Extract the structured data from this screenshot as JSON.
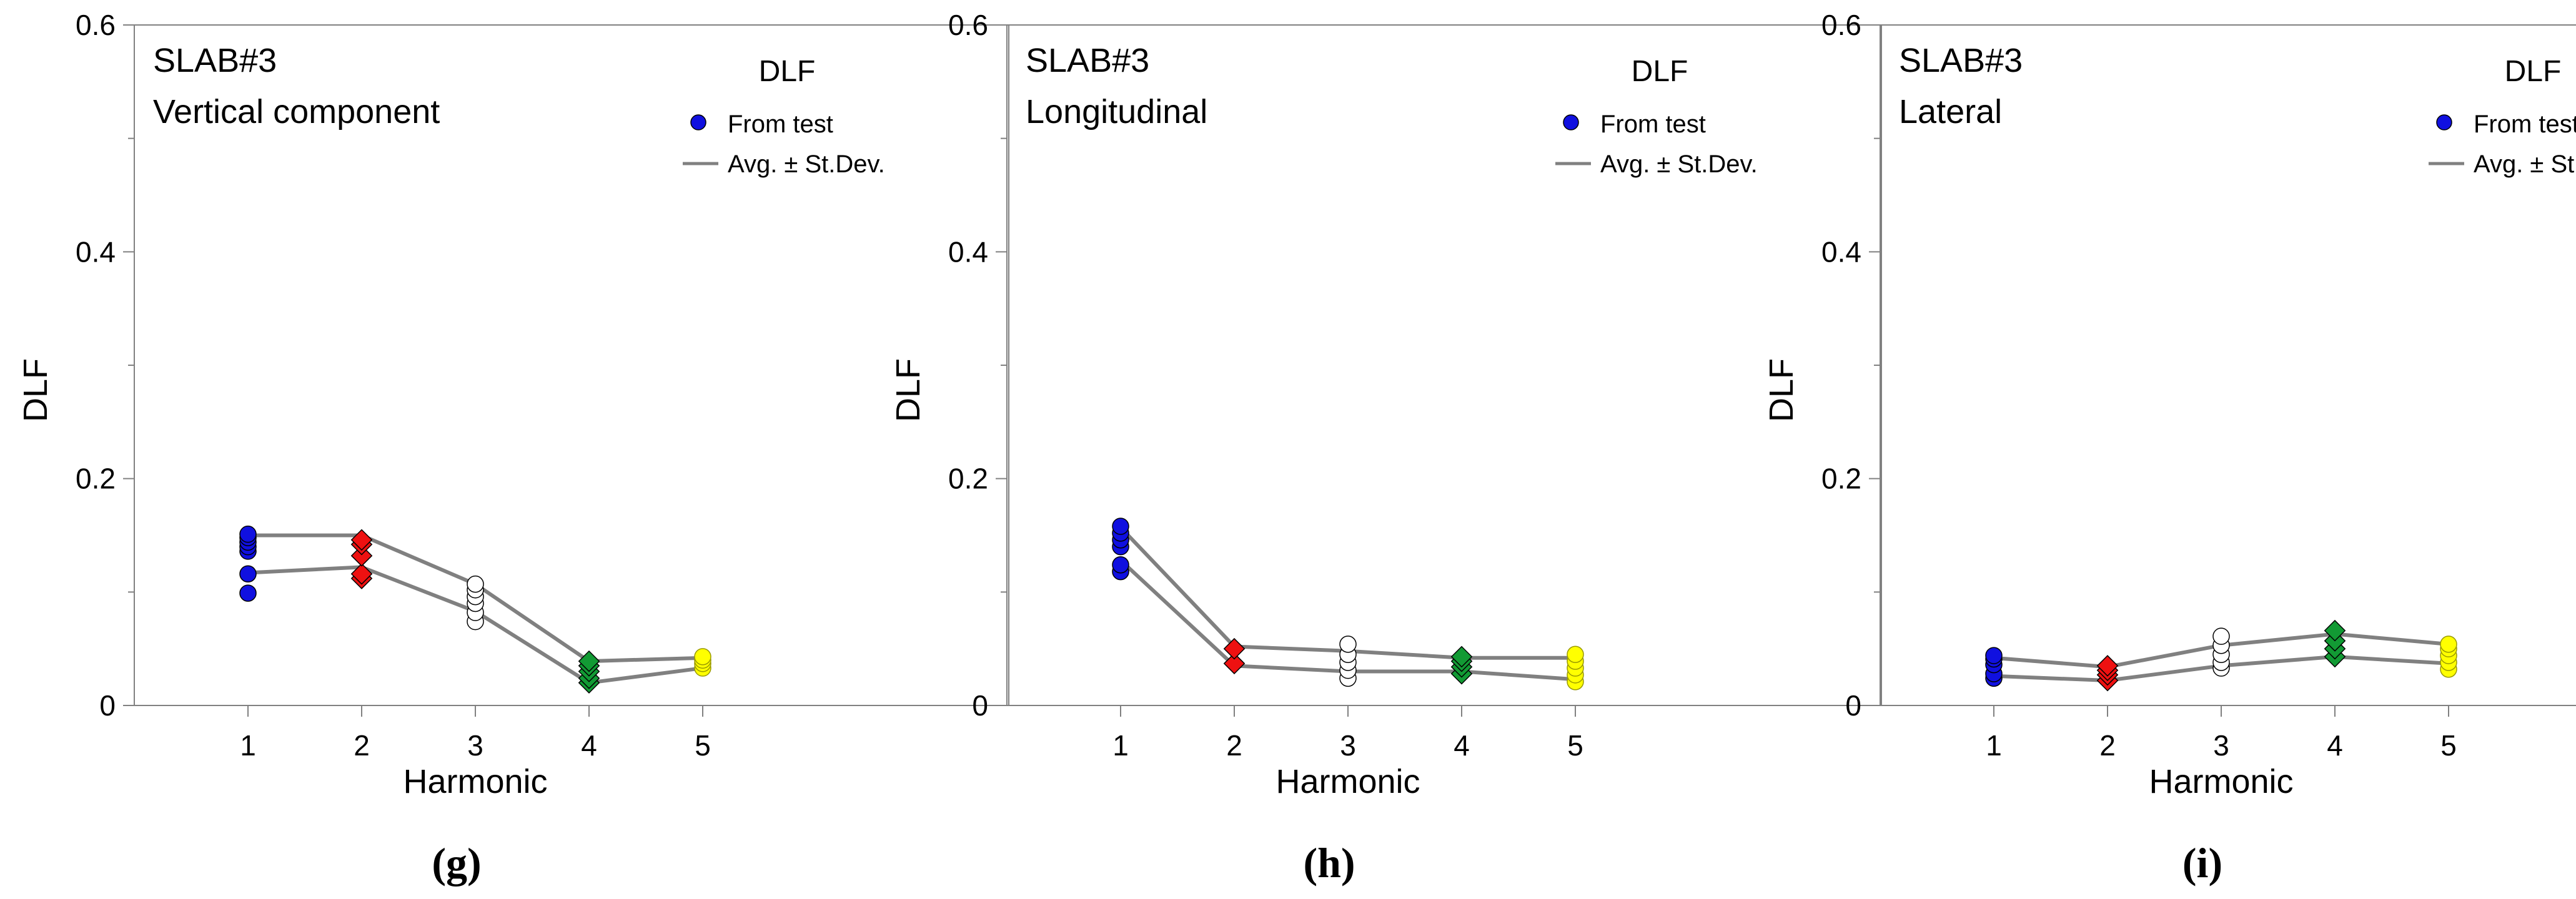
{
  "chart_data": [
    {
      "type": "scatter",
      "panel_label": "(g)",
      "annotation_lines": [
        "SLAB#3",
        "Vertical component"
      ],
      "legend_title": "DLF",
      "legend_entries": [
        "From test",
        "Avg. ± St.Dev."
      ],
      "xlabel": "Harmonic",
      "ylabel": "DLF",
      "xlim": [
        0,
        5
      ],
      "ylim": [
        0,
        0.6
      ],
      "xticks": [
        "1",
        "2",
        "3",
        "4",
        "5"
      ],
      "yticks": [
        "0",
        "0.2",
        "0.4",
        "0.6"
      ],
      "legend_position": "top-right",
      "marker_colors": [
        "#1010e0",
        "#ee1111",
        "#ffffff",
        "#129a34",
        "#ffff00"
      ],
      "marker_shapes": [
        "circle",
        "diamond",
        "circle",
        "diamond",
        "circle"
      ],
      "line_color": "#808080",
      "series": [
        {
          "name": "From test",
          "points": [
            {
              "x": 1,
              "y": [
                0.099,
                0.116,
                0.136,
                0.14,
                0.144,
                0.148,
                0.151
              ]
            },
            {
              "x": 2,
              "y": [
                0.112,
                0.116,
                0.132,
                0.142,
                0.146
              ]
            },
            {
              "x": 3,
              "y": [
                0.074,
                0.082,
                0.09,
                0.096,
                0.102,
                0.107
              ]
            },
            {
              "x": 4,
              "y": [
                0.02,
                0.024,
                0.03,
                0.035,
                0.039
              ]
            },
            {
              "x": 5,
              "y": [
                0.033,
                0.037,
                0.04,
                0.043
              ]
            }
          ]
        },
        {
          "name": "Avg. ± St.Dev.",
          "upper": [
            0.15,
            0.15,
            0.107,
            0.039,
            0.042
          ],
          "lower": [
            0.117,
            0.122,
            0.083,
            0.02,
            0.033
          ]
        }
      ]
    },
    {
      "type": "scatter",
      "panel_label": "(h)",
      "annotation_lines": [
        "SLAB#3",
        "Longitudinal"
      ],
      "legend_title": "DLF",
      "legend_entries": [
        "From test",
        "Avg. ± St.Dev."
      ],
      "xlabel": "Harmonic",
      "ylabel": "DLF",
      "xlim": [
        0,
        5
      ],
      "ylim": [
        0,
        0.6
      ],
      "xticks": [
        "1",
        "2",
        "3",
        "4",
        "5"
      ],
      "yticks": [
        "0",
        "0.2",
        "0.4",
        "0.6"
      ],
      "legend_position": "top-right",
      "marker_colors": [
        "#1010e0",
        "#ee1111",
        "#ffffff",
        "#129a34",
        "#ffff00"
      ],
      "marker_shapes": [
        "circle",
        "diamond",
        "circle",
        "diamond",
        "circle"
      ],
      "line_color": "#808080",
      "series": [
        {
          "name": "From test",
          "points": [
            {
              "x": 1,
              "y": [
                0.118,
                0.124,
                0.14,
                0.146,
                0.152,
                0.158
              ]
            },
            {
              "x": 2,
              "y": [
                0.037,
                0.05
              ]
            },
            {
              "x": 3,
              "y": [
                0.024,
                0.031,
                0.038,
                0.045,
                0.054
              ]
            },
            {
              "x": 4,
              "y": [
                0.028,
                0.034,
                0.039,
                0.043
              ]
            },
            {
              "x": 5,
              "y": [
                0.021,
                0.027,
                0.033,
                0.039,
                0.045
              ]
            }
          ]
        },
        {
          "name": "Avg. ± St.Dev.",
          "upper": [
            0.157,
            0.052,
            0.048,
            0.042,
            0.042
          ],
          "lower": [
            0.128,
            0.035,
            0.03,
            0.03,
            0.023
          ]
        }
      ]
    },
    {
      "type": "scatter",
      "panel_label": "(i)",
      "annotation_lines": [
        "SLAB#3",
        "Lateral"
      ],
      "legend_title": "DLF",
      "legend_entries": [
        "From test",
        "Avg. ± St.Dev."
      ],
      "xlabel": "Harmonic",
      "ylabel": "DLF",
      "xlim": [
        0,
        5
      ],
      "ylim": [
        0,
        0.6
      ],
      "xticks": [
        "1",
        "2",
        "3",
        "4",
        "5"
      ],
      "yticks": [
        "0",
        "0.2",
        "0.4",
        "0.6"
      ],
      "legend_position": "top-right",
      "marker_colors": [
        "#1010e0",
        "#ee1111",
        "#ffffff",
        "#129a34",
        "#ffff00"
      ],
      "marker_shapes": [
        "circle",
        "diamond",
        "circle",
        "diamond",
        "circle"
      ],
      "line_color": "#808080",
      "series": [
        {
          "name": "From test",
          "points": [
            {
              "x": 1,
              "y": [
                0.024,
                0.028,
                0.036,
                0.041,
                0.044
              ]
            },
            {
              "x": 2,
              "y": [
                0.022,
                0.027,
                0.031,
                0.035
              ]
            },
            {
              "x": 3,
              "y": [
                0.033,
                0.038,
                0.045,
                0.053,
                0.061
              ]
            },
            {
              "x": 4,
              "y": [
                0.043,
                0.05,
                0.057,
                0.066
              ]
            },
            {
              "x": 5,
              "y": [
                0.032,
                0.038,
                0.044,
                0.05,
                0.054
              ]
            }
          ]
        },
        {
          "name": "Avg. ± St.Dev.",
          "upper": [
            0.042,
            0.034,
            0.053,
            0.063,
            0.054
          ],
          "lower": [
            0.026,
            0.022,
            0.035,
            0.043,
            0.037
          ]
        }
      ]
    }
  ]
}
